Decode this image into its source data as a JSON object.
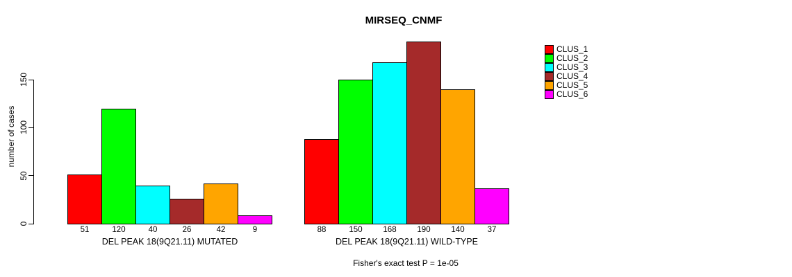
{
  "chart_data": {
    "type": "bar",
    "title": "MIRSEQ_CNMF",
    "ylabel": "number of cases",
    "ylim": [
      0,
      200
    ],
    "yticks": [
      0,
      50,
      100,
      150
    ],
    "grid": false,
    "legend_position": "right",
    "categories": [
      "DEL PEAK 18(9Q21.11) MUTATED",
      "DEL PEAK 18(9Q21.11) WILD-TYPE"
    ],
    "series": [
      {
        "name": "CLUS_1",
        "color": "#FF0000",
        "values": [
          51,
          88
        ]
      },
      {
        "name": "CLUS_2",
        "color": "#00FF00",
        "values": [
          120,
          150
        ]
      },
      {
        "name": "CLUS_3",
        "color": "#00FFFF",
        "values": [
          40,
          168
        ]
      },
      {
        "name": "CLUS_4",
        "color": "#A52A2A",
        "values": [
          26,
          190
        ]
      },
      {
        "name": "CLUS_5",
        "color": "#FFA500",
        "values": [
          42,
          140
        ]
      },
      {
        "name": "CLUS_6",
        "color": "#FF00FF",
        "values": [
          9,
          37
        ]
      }
    ],
    "bar_value_labels_shown": true,
    "annotation": "Fisher's exact test P = 1e-05",
    "axis_color": "#000000",
    "background_color": "#FFFFFF"
  }
}
